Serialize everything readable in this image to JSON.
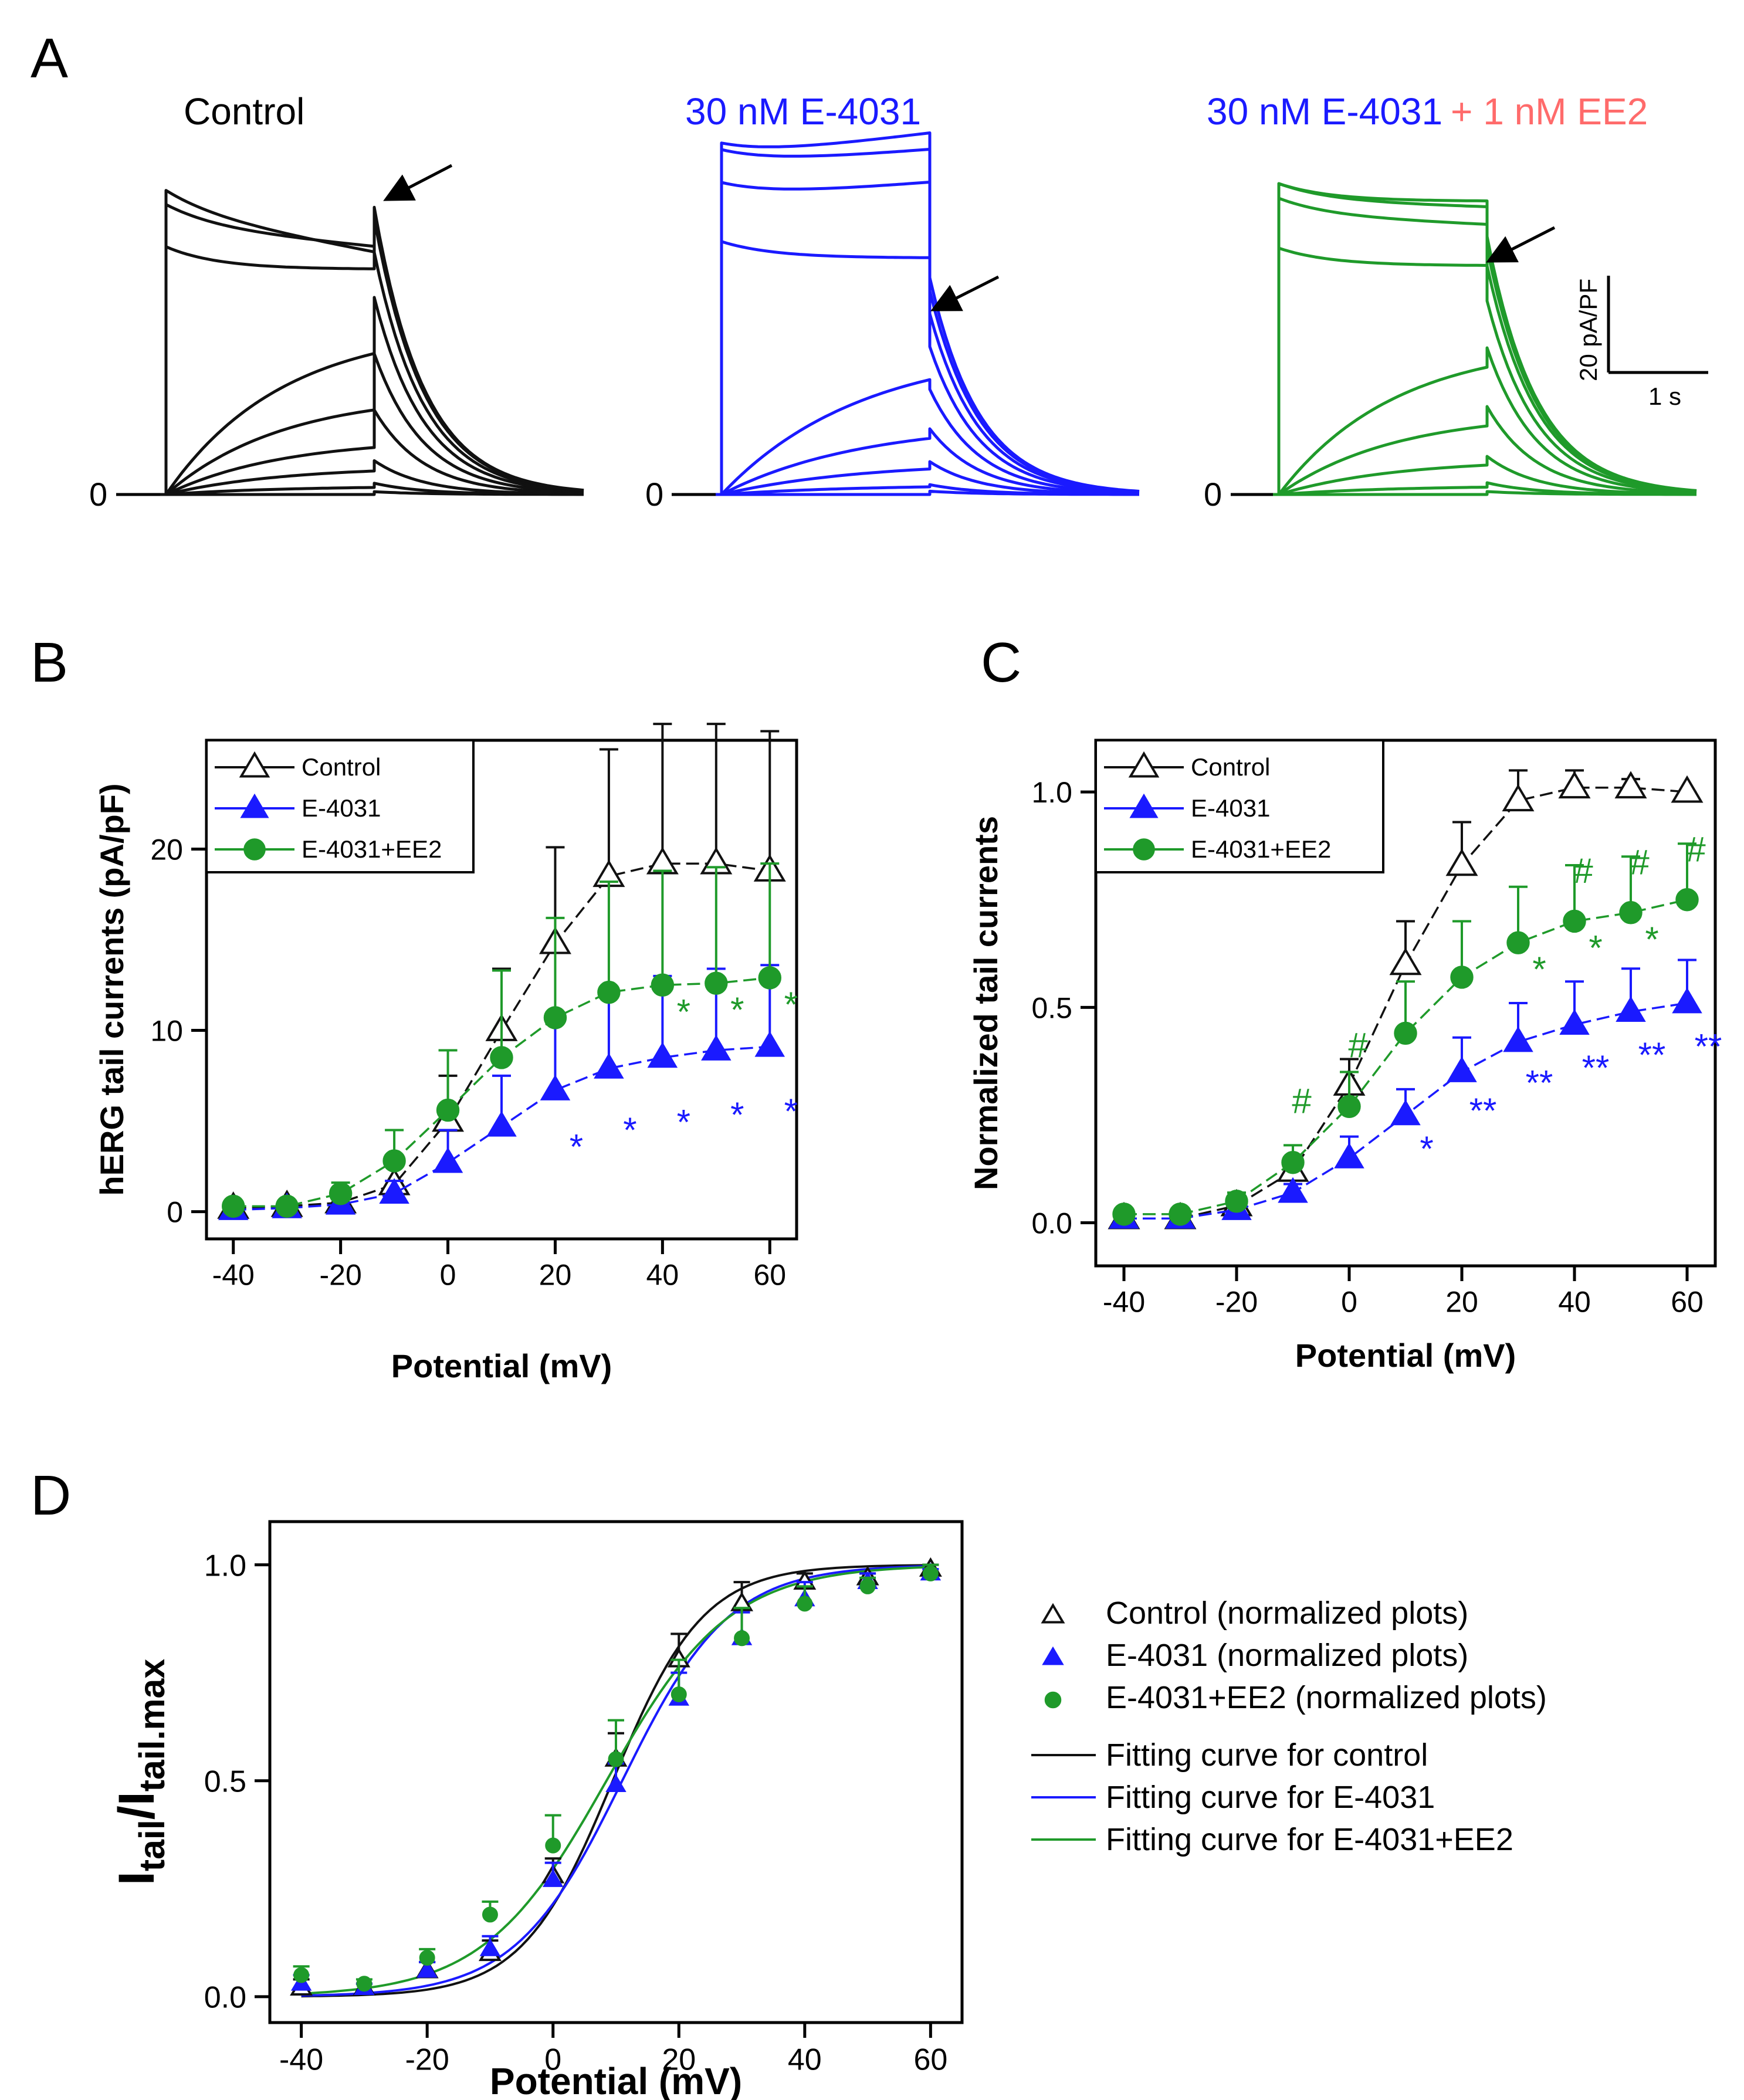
{
  "colors": {
    "control": "#111111",
    "e4031": "#1a1aff",
    "ee2": "#1f9a2a",
    "ee2_label": "#ff6b6b",
    "axis": "#000000"
  },
  "panelA": {
    "letter": "A",
    "zero_label": "0",
    "labels": {
      "control": "Control",
      "e4031": "30 nM E-4031",
      "combo_a": "30 nM E-4031",
      "combo_b": "+ 1 nM EE2"
    },
    "scalebar": {
      "y_label": "20 pA/PF",
      "x_label": "1 s"
    }
  },
  "chart_data": [
    {
      "panel": "B",
      "type": "line",
      "x": [
        -40,
        -30,
        -20,
        -10,
        0,
        10,
        20,
        30,
        40,
        50,
        60
      ],
      "xlabel": "Potential (mV)",
      "ylabel": "hERG tail currents (pA/pF)",
      "xlim": [
        -45,
        65
      ],
      "ylim": [
        -1.5,
        26
      ],
      "xticks": [
        -40,
        -20,
        0,
        20,
        40,
        60
      ],
      "yticks": [
        0,
        10,
        20
      ],
      "legend": "top-left",
      "series": [
        {
          "name": "Control",
          "marker": "triangle-open",
          "color": "#111111",
          "values": [
            0.2,
            0.3,
            0.5,
            1.5,
            5.0,
            10.0,
            14.8,
            18.5,
            19.2,
            19.2,
            18.8
          ],
          "err": [
            0.2,
            0.2,
            0.4,
            1.0,
            2.5,
            3.4,
            5.3,
            7.0,
            7.7,
            7.7,
            7.7
          ]
        },
        {
          "name": "E-4031",
          "marker": "triangle-filled",
          "color": "#1a1aff",
          "values": [
            0.1,
            0.2,
            0.4,
            1.0,
            2.7,
            4.7,
            6.7,
            7.9,
            8.5,
            8.9,
            9.1
          ],
          "err": [
            0.1,
            0.2,
            0.3,
            0.7,
            1.8,
            2.8,
            3.7,
            4.2,
            4.5,
            4.5,
            4.5
          ]
        },
        {
          "name": "E-4031+EE2",
          "marker": "circle-filled",
          "color": "#1f9a2a",
          "values": [
            0.3,
            0.3,
            1.0,
            2.8,
            5.6,
            8.5,
            10.7,
            12.1,
            12.5,
            12.6,
            12.9
          ],
          "err": [
            0.2,
            0.2,
            0.6,
            1.7,
            3.3,
            4.8,
            5.5,
            6.1,
            6.3,
            6.4,
            6.3
          ]
        }
      ],
      "annotations": [
        {
          "text": "*",
          "x": 40,
          "color": "green"
        },
        {
          "text": "*",
          "x": 50,
          "color": "green"
        },
        {
          "text": "*",
          "x": 60,
          "color": "green"
        },
        {
          "text": "*",
          "x": 20,
          "color": "blue"
        },
        {
          "text": "*",
          "x": 30,
          "color": "blue"
        },
        {
          "text": "*",
          "x": 40,
          "color": "blue"
        },
        {
          "text": "*",
          "x": 50,
          "color": "blue"
        },
        {
          "text": "*",
          "x": 60,
          "color": "blue"
        }
      ]
    },
    {
      "panel": "C",
      "type": "line",
      "x": [
        -40,
        -30,
        -20,
        -10,
        0,
        10,
        20,
        30,
        40,
        50,
        60
      ],
      "xlabel": "Potential (mV)",
      "ylabel": "Normalized tail currents",
      "xlim": [
        -45,
        65
      ],
      "ylim": [
        -0.1,
        1.12
      ],
      "xticks": [
        -40,
        -20,
        0,
        20,
        40,
        60
      ],
      "yticks": [
        0.0,
        0.5,
        1.0
      ],
      "ytick_labels": [
        "0.0",
        "0.5",
        "1.0"
      ],
      "legend": "top-left",
      "series": [
        {
          "name": "Control",
          "marker": "triangle-open",
          "color": "#111111",
          "values": [
            0.01,
            0.01,
            0.04,
            0.12,
            0.32,
            0.6,
            0.83,
            0.98,
            1.01,
            1.01,
            1.0
          ],
          "err": [
            0.01,
            0.01,
            0.02,
            0.03,
            0.06,
            0.1,
            0.1,
            0.07,
            0.04,
            0.02,
            0.0
          ]
        },
        {
          "name": "E-4031",
          "marker": "triangle-filled",
          "color": "#1a1aff",
          "values": [
            0.01,
            0.01,
            0.03,
            0.07,
            0.15,
            0.25,
            0.35,
            0.42,
            0.46,
            0.49,
            0.51
          ],
          "err": [
            0.01,
            0.01,
            0.01,
            0.02,
            0.05,
            0.06,
            0.08,
            0.09,
            0.1,
            0.1,
            0.1
          ]
        },
        {
          "name": "E-4031+EE2",
          "marker": "circle-filled",
          "color": "#1f9a2a",
          "values": [
            0.02,
            0.02,
            0.05,
            0.14,
            0.27,
            0.44,
            0.57,
            0.65,
            0.7,
            0.72,
            0.75
          ],
          "err": [
            0.01,
            0.01,
            0.02,
            0.04,
            0.08,
            0.12,
            0.13,
            0.13,
            0.13,
            0.13,
            0.13
          ]
        }
      ],
      "annotations": [
        {
          "text": "#",
          "x": -10,
          "color": "green"
        },
        {
          "text": "#",
          "x": 0,
          "color": "green"
        },
        {
          "text": "#",
          "x": 40,
          "color": "green"
        },
        {
          "text": "#",
          "x": 50,
          "color": "green"
        },
        {
          "text": "#",
          "x": 60,
          "color": "green"
        },
        {
          "text": "*",
          "x": 30,
          "color": "green"
        },
        {
          "text": "*",
          "x": 40,
          "color": "green"
        },
        {
          "text": "*",
          "x": 50,
          "color": "green"
        },
        {
          "text": "*",
          "x": 10,
          "color": "blue"
        },
        {
          "text": "**",
          "x": 20,
          "color": "blue"
        },
        {
          "text": "**",
          "x": 30,
          "color": "blue"
        },
        {
          "text": "**",
          "x": 40,
          "color": "blue"
        },
        {
          "text": "**",
          "x": 50,
          "color": "blue"
        },
        {
          "text": "**",
          "x": 60,
          "color": "blue"
        }
      ]
    },
    {
      "panel": "D",
      "type": "scatter",
      "x": [
        -40,
        -30,
        -20,
        -10,
        0,
        10,
        20,
        30,
        40,
        50,
        60
      ],
      "xlabel": "Potential (mV)",
      "ylabel_main": "I",
      "ylabel_sub1": "tail",
      "ylabel_mid": "/I",
      "ylabel_sub2": "tail.max",
      "xlim": [
        -45,
        65
      ],
      "ylim": [
        -0.06,
        1.1
      ],
      "xticks": [
        -40,
        -20,
        0,
        20,
        40,
        60
      ],
      "yticks": [
        0.0,
        0.5,
        1.0
      ],
      "ytick_labels": [
        "0.0",
        "0.5",
        "1.0"
      ],
      "legend": "right",
      "series": [
        {
          "name": "Control (normalized plots)",
          "marker": "triangle-open",
          "color": "#111111",
          "values": [
            0.02,
            0.02,
            0.06,
            0.1,
            0.28,
            0.55,
            0.78,
            0.91,
            0.96,
            0.97,
            0.99
          ],
          "err": [
            0.02,
            0.01,
            0.02,
            0.03,
            0.04,
            0.06,
            0.06,
            0.05,
            0.02,
            0.01,
            0.01
          ]
        },
        {
          "name": "E-4031 (normalized plots)",
          "marker": "triangle-filled",
          "color": "#1a1aff",
          "values": [
            0.03,
            0.02,
            0.06,
            0.11,
            0.27,
            0.49,
            0.69,
            0.83,
            0.92,
            0.96,
            0.98
          ],
          "err": [
            0.02,
            0.01,
            0.02,
            0.03,
            0.04,
            0.05,
            0.06,
            0.06,
            0.04,
            0.02,
            0.01
          ]
        },
        {
          "name": "E-4031+EE2 (normalized plots)",
          "marker": "circle-filled",
          "color": "#1f9a2a",
          "values": [
            0.05,
            0.03,
            0.09,
            0.19,
            0.35,
            0.55,
            0.7,
            0.83,
            0.91,
            0.95,
            0.98
          ],
          "err": [
            0.02,
            0.01,
            0.02,
            0.03,
            0.07,
            0.09,
            0.08,
            0.07,
            0.04,
            0.02,
            0.02
          ]
        }
      ],
      "fits": [
        {
          "name": "Fitting curve for control",
          "color": "#111111",
          "v_half": 9.5,
          "k": 7.2
        },
        {
          "name": "Fitting curve for E-4031",
          "color": "#1a1aff",
          "v_half": 11.0,
          "k": 8.5
        },
        {
          "name": "Fitting curve for E-4031+EE2",
          "color": "#1f9a2a",
          "v_half": 8.5,
          "k": 9.8
        }
      ]
    }
  ]
}
